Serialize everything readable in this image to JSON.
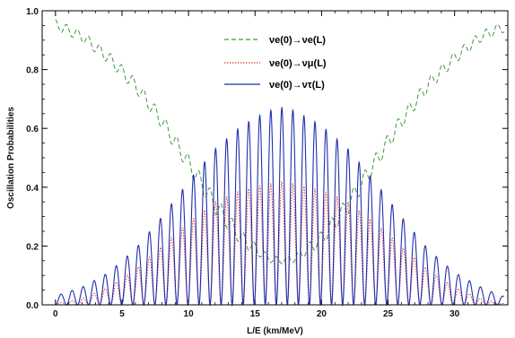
{
  "chart_data": {
    "type": "line",
    "xlabel": "L/E (km/MeV)",
    "ylabel": "Oscillation Probabilities",
    "xlim": [
      -1,
      34
    ],
    "ylim": [
      0,
      1
    ],
    "x_ticks": [
      0,
      5,
      10,
      15,
      20,
      25,
      30
    ],
    "x_tick_labels": [
      "0",
      "5",
      "10",
      "15",
      "20",
      "25",
      "30"
    ],
    "y_ticks": [
      0,
      0.2,
      0.4,
      0.6,
      0.8,
      1.0
    ],
    "y_tick_labels": [
      "0.0",
      "0.2",
      "0.4",
      "0.6",
      "0.8",
      "1.0"
    ],
    "legend_position": "top-center",
    "oscillation_period_LE": 0.83,
    "series": [
      {
        "name": "ν_e(0)→ν_e(L)",
        "legend_main": "νe(0)→νe(L)",
        "color": "#3a9a3a",
        "dash": "dashed",
        "envelope_x": [
          0,
          2,
          4,
          6,
          8,
          10,
          12,
          14,
          16,
          17,
          18,
          20,
          22,
          24,
          26,
          28,
          30,
          32,
          33.5
        ],
        "envelope_y": [
          0.97,
          0.93,
          0.86,
          0.77,
          0.65,
          0.51,
          0.37,
          0.25,
          0.17,
          0.16,
          0.17,
          0.25,
          0.37,
          0.51,
          0.65,
          0.77,
          0.86,
          0.93,
          0.96
        ],
        "wiggle_amplitude": [
          0.035,
          0.035,
          0.04,
          0.045,
          0.05,
          0.055,
          0.06,
          0.05,
          0.025,
          0.02,
          0.025,
          0.05,
          0.06,
          0.055,
          0.05,
          0.045,
          0.04,
          0.035,
          0.035
        ]
      },
      {
        "name": "ν_e(0)→ν_μ(L)",
        "legend_main": "νe(0)→νμ(L)",
        "color": "#d9342b",
        "dash": "dotted",
        "envelope_x": [
          0,
          2,
          4,
          6,
          8,
          10,
          12,
          14,
          16,
          17,
          18,
          20,
          22,
          24,
          26,
          28,
          30,
          32,
          33.5
        ],
        "envelope_max": [
          0.005,
          0.02,
          0.06,
          0.12,
          0.2,
          0.28,
          0.35,
          0.39,
          0.41,
          0.42,
          0.41,
          0.39,
          0.35,
          0.28,
          0.2,
          0.12,
          0.06,
          0.02,
          0.005
        ]
      },
      {
        "name": "ν_e(0)→ν_τ(L)",
        "legend_main": "νe(0)→ντ(L)",
        "color": "#1f2fae",
        "dash": "solid",
        "envelope_x": [
          0,
          2,
          4,
          6,
          8,
          10,
          12,
          14,
          16,
          17,
          18,
          20,
          22,
          24,
          26,
          28,
          30,
          32,
          33.5
        ],
        "envelope_max": [
          0.03,
          0.06,
          0.11,
          0.19,
          0.3,
          0.42,
          0.53,
          0.61,
          0.66,
          0.67,
          0.66,
          0.61,
          0.53,
          0.42,
          0.3,
          0.19,
          0.11,
          0.06,
          0.03
        ]
      }
    ]
  }
}
